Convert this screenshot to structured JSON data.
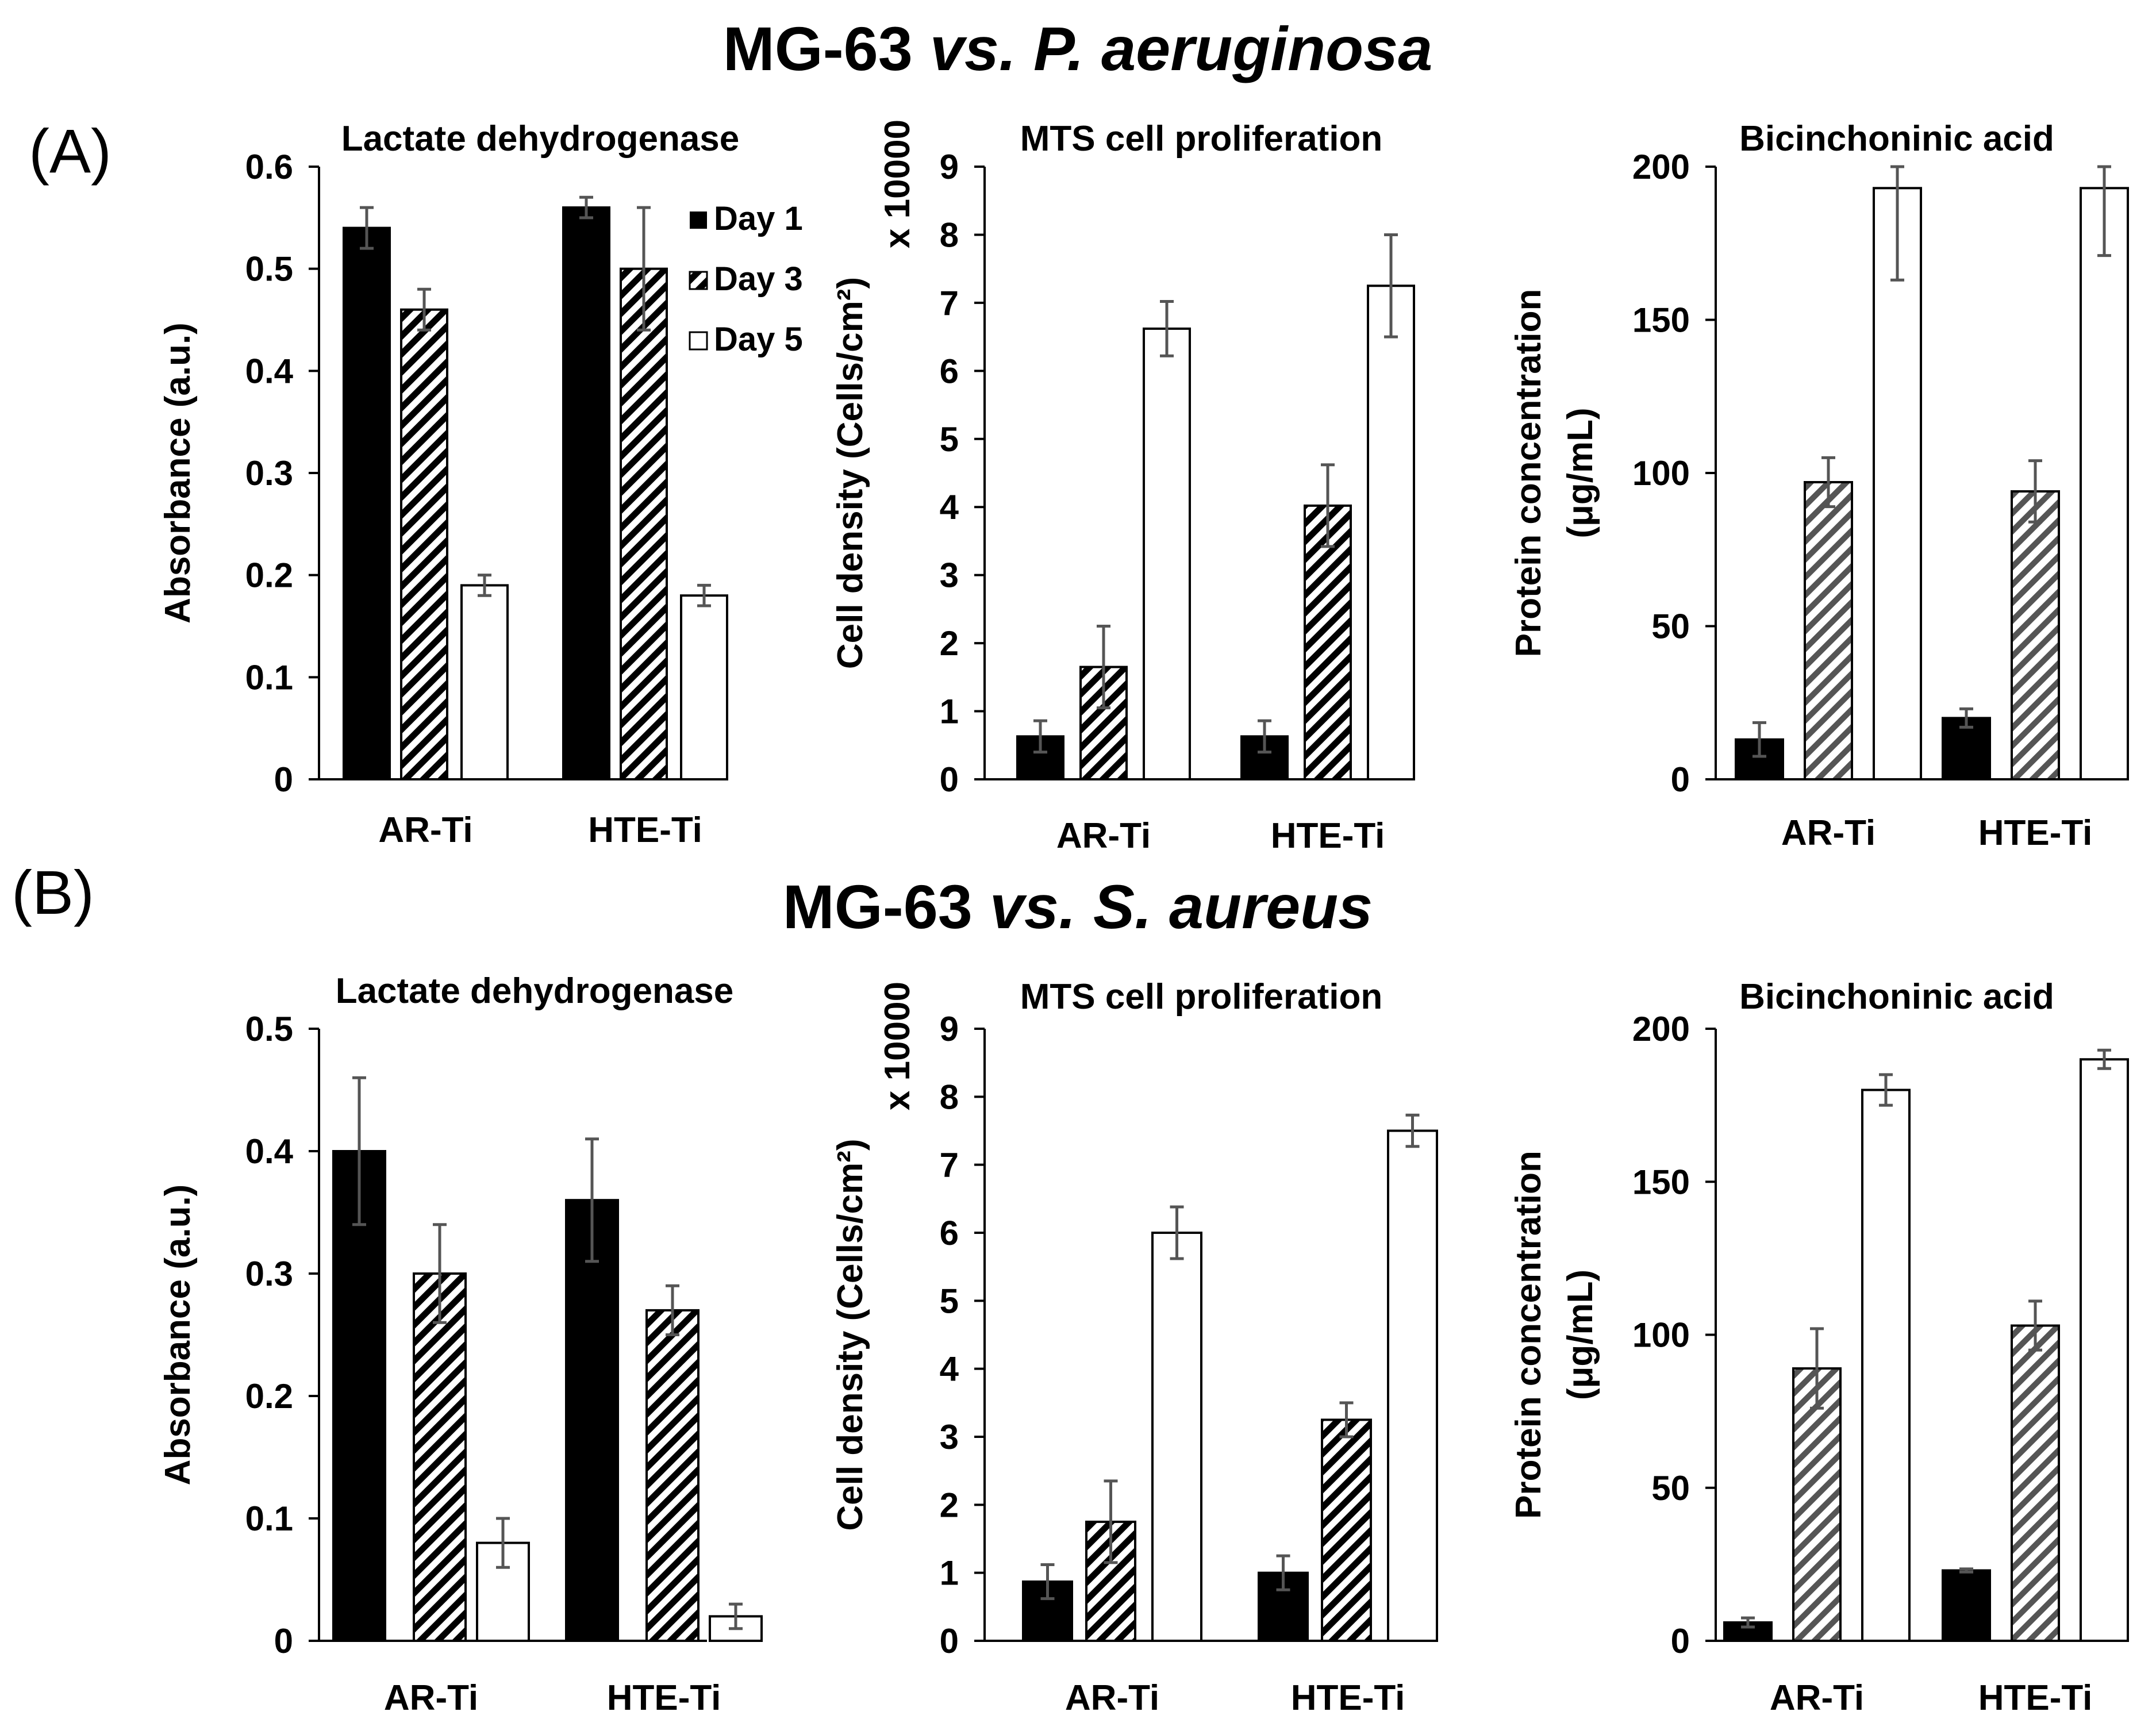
{
  "figure": {
    "title_a_prefix": "MG-63 ",
    "title_a_italic": "vs. P. aeruginosa",
    "title_b_prefix": "MG-63 ",
    "title_b_italic": "vs. S. aureus",
    "panel_a": "(A)",
    "panel_b": "(B)",
    "legend": [
      "Day 1",
      "Day 3",
      "Day 5"
    ]
  },
  "chart_data": [
    {
      "id": "A1",
      "type": "bar",
      "title": "Lactate dehydrogenase",
      "ylabel": "Absorbance (a.u.)",
      "ylim": [
        0,
        0.6
      ],
      "yticks": [
        "0",
        "0.1",
        "0.2",
        "0.3",
        "0.4",
        "0.5",
        "0.6"
      ],
      "categories": [
        "AR-Ti",
        "HTE-Ti"
      ],
      "series": [
        {
          "name": "Day 1",
          "values": [
            0.54,
            0.56
          ],
          "errors": [
            0.02,
            0.01
          ]
        },
        {
          "name": "Day 3",
          "values": [
            0.46,
            0.5
          ],
          "errors": [
            0.02,
            0.06
          ]
        },
        {
          "name": "Day 5",
          "values": [
            0.19,
            0.18
          ],
          "errors": [
            0.01,
            0.01
          ]
        }
      ]
    },
    {
      "id": "A2",
      "type": "bar",
      "title": "MTS cell proliferation",
      "ylabel": "Cell density (Cells/cm²)",
      "ymult": "x 10000",
      "ylim": [
        0,
        9
      ],
      "yticks": [
        "0",
        "1",
        "2",
        "3",
        "4",
        "5",
        "6",
        "7",
        "8",
        "9"
      ],
      "categories": [
        "AR-Ti",
        "HTE-Ti"
      ],
      "series": [
        {
          "name": "Day 1",
          "values": [
            0.63,
            0.63
          ],
          "errors": [
            0.23,
            0.23
          ]
        },
        {
          "name": "Day 3",
          "values": [
            1.65,
            4.02
          ],
          "errors": [
            0.6,
            0.6
          ]
        },
        {
          "name": "Day 5",
          "values": [
            6.62,
            7.25
          ],
          "errors": [
            0.4,
            0.75
          ]
        }
      ]
    },
    {
      "id": "A3",
      "type": "bar",
      "title": "Bicinchoninic acid",
      "ylabel": "Protein concentration",
      "ylabel2": "(μg/mL)",
      "ylim": [
        0,
        200
      ],
      "yticks": [
        "0",
        "50",
        "100",
        "150",
        "200"
      ],
      "categories": [
        "AR-Ti",
        "HTE-Ti"
      ],
      "series": [
        {
          "name": "Day 1",
          "values": [
            13,
            20
          ],
          "errors": [
            5.5,
            3
          ]
        },
        {
          "name": "Day 3",
          "values": [
            97,
            94
          ],
          "errors": [
            8,
            10
          ]
        },
        {
          "name": "Day 5",
          "values": [
            193,
            193
          ],
          "errors": [
            30,
            22
          ]
        }
      ]
    },
    {
      "id": "B1",
      "type": "bar",
      "title": "Lactate dehydrogenase",
      "ylabel": "Absorbance (a.u.)",
      "ylim": [
        0,
        0.5
      ],
      "yticks": [
        "0",
        "0.1",
        "0.2",
        "0.3",
        "0.4",
        "0.5"
      ],
      "categories": [
        "AR-Ti",
        "HTE-Ti"
      ],
      "series": [
        {
          "name": "Day 1",
          "values": [
            0.4,
            0.36
          ],
          "errors": [
            0.06,
            0.05
          ]
        },
        {
          "name": "Day 3",
          "values": [
            0.3,
            0.27
          ],
          "errors": [
            0.04,
            0.02
          ]
        },
        {
          "name": "Day 5",
          "values": [
            0.08,
            0.02
          ],
          "errors": [
            0.02,
            0.01
          ]
        }
      ]
    },
    {
      "id": "B2",
      "type": "bar",
      "title": "MTS cell proliferation",
      "ylabel": "Cell density (Cells/cm²)",
      "ymult": "x 10000",
      "ylim": [
        0,
        9
      ],
      "yticks": [
        "0",
        "1",
        "2",
        "3",
        "4",
        "5",
        "6",
        "7",
        "8",
        "9"
      ],
      "categories": [
        "AR-Ti",
        "HTE-Ti"
      ],
      "series": [
        {
          "name": "Day 1",
          "values": [
            0.87,
            1.0
          ],
          "errors": [
            0.25,
            0.25
          ]
        },
        {
          "name": "Day 3",
          "values": [
            1.75,
            3.25
          ],
          "errors": [
            0.6,
            0.25
          ]
        },
        {
          "name": "Day 5",
          "values": [
            6.0,
            7.5
          ],
          "errors": [
            0.38,
            0.23
          ]
        }
      ]
    },
    {
      "id": "B3",
      "type": "bar",
      "title": "Bicinchoninic acid",
      "ylabel": "Protein concentration",
      "ylabel2": "(μg/mL)",
      "ylim": [
        0,
        200
      ],
      "yticks": [
        "0",
        "50",
        "100",
        "150",
        "200"
      ],
      "categories": [
        "AR-Ti",
        "HTE-Ti"
      ],
      "series": [
        {
          "name": "Day 1",
          "values": [
            6,
            23
          ],
          "errors": [
            1.5,
            0.5
          ]
        },
        {
          "name": "Day 3",
          "values": [
            89,
            103
          ],
          "errors": [
            13,
            8
          ]
        },
        {
          "name": "Day 5",
          "values": [
            180,
            190
          ],
          "errors": [
            5,
            3
          ]
        }
      ]
    }
  ]
}
